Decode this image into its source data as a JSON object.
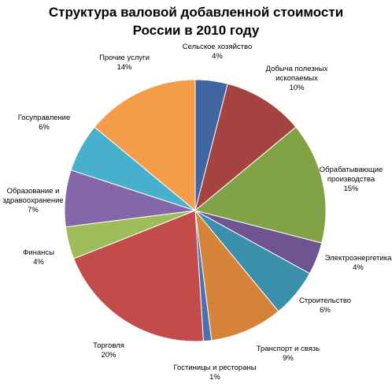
{
  "chart_data": {
    "type": "pie",
    "title": [
      "Структура валовой добавленной стоимости",
      "России в 2010 году"
    ],
    "slices": [
      {
        "label": [
          "Сельское хозяйство"
        ],
        "pct_label": "4%",
        "value": 4,
        "color": "#4065A0"
      },
      {
        "label": [
          "Добыча полезных",
          "ископаемых"
        ],
        "pct_label": "10%",
        "value": 10,
        "color": "#A54340"
      },
      {
        "label": [
          "Обрабатывающие",
          "производства"
        ],
        "pct_label": "15%",
        "value": 15,
        "color": "#82A247"
      },
      {
        "label": [
          "Электроэнергетика"
        ],
        "pct_label": "4%",
        "value": 4,
        "color": "#6E5591"
      },
      {
        "label": [
          "Строительство"
        ],
        "pct_label": "6%",
        "value": 6,
        "color": "#3A90AA"
      },
      {
        "label": [
          "Транспорт и связь"
        ],
        "pct_label": "9%",
        "value": 9,
        "color": "#D6833A"
      },
      {
        "label": [
          "Гостиницы и рестораны"
        ],
        "pct_label": "1%",
        "value": 1,
        "color": "#4A72B0"
      },
      {
        "label": [
          "Торговля"
        ],
        "pct_label": "20%",
        "value": 20,
        "color": "#C24C4A"
      },
      {
        "label": [
          "Финансы"
        ],
        "pct_label": "4%",
        "value": 4,
        "color": "#9DBD5A"
      },
      {
        "label": [
          "Образование и",
          "здравоохранение"
        ],
        "pct_label": "7%",
        "value": 7,
        "color": "#8367A8"
      },
      {
        "label": [
          "Госуправление"
        ],
        "pct_label": "6%",
        "value": 6,
        "color": "#48B0CC"
      },
      {
        "label": [
          "Прочие услуги"
        ],
        "pct_label": "14%",
        "value": 14,
        "color": "#F59C49"
      }
    ]
  }
}
